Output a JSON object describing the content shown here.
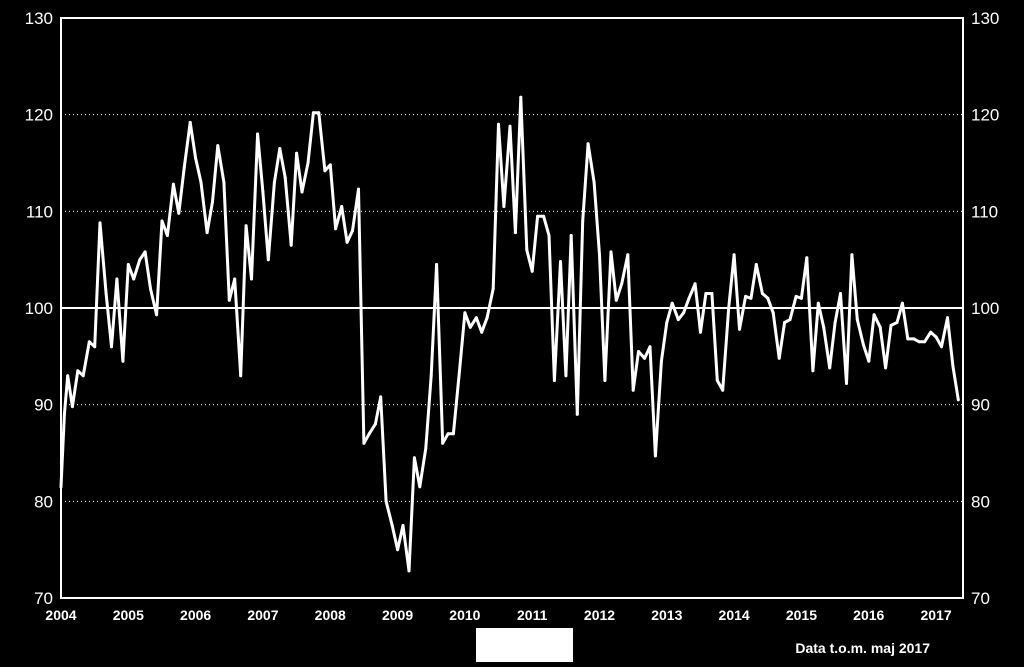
{
  "chart_data": {
    "type": "line",
    "title": "",
    "xlabel": "",
    "ylabel": "",
    "ylim": [
      70,
      130
    ],
    "xlim": [
      2004.0,
      2017.4
    ],
    "y_ticks": [
      "70",
      "80",
      "90",
      "100",
      "110",
      "120",
      "130"
    ],
    "x_ticks": [
      "2004",
      "2005",
      "2006",
      "2007",
      "2008",
      "2009",
      "2010",
      "2011",
      "2012",
      "2013",
      "2014",
      "2015",
      "2016",
      "2017"
    ],
    "reference_line": 100,
    "grid": "dotted horizontal",
    "note": "Data t.o.m. maj 2017",
    "colors": {
      "background": "#000000",
      "line": "#ffffff",
      "axis": "#ffffff",
      "legend_box": "#ffffff"
    },
    "series": [
      {
        "values": [
          [
            2004.0,
            81.5
          ],
          [
            2004.05,
            89.0
          ],
          [
            2004.1,
            93.0
          ],
          [
            2004.17,
            89.8
          ],
          [
            2004.25,
            93.5
          ],
          [
            2004.33,
            93.0
          ],
          [
            2004.42,
            96.5
          ],
          [
            2004.5,
            96.0
          ],
          [
            2004.58,
            108.8
          ],
          [
            2004.67,
            101.5
          ],
          [
            2004.75,
            96.0
          ],
          [
            2004.83,
            103.0
          ],
          [
            2004.92,
            94.5
          ],
          [
            2005.0,
            104.5
          ],
          [
            2005.08,
            103.0
          ],
          [
            2005.17,
            105.0
          ],
          [
            2005.25,
            105.8
          ],
          [
            2005.33,
            102.0
          ],
          [
            2005.42,
            99.3
          ],
          [
            2005.5,
            109.0
          ],
          [
            2005.58,
            107.5
          ],
          [
            2005.67,
            112.8
          ],
          [
            2005.75,
            109.8
          ],
          [
            2005.83,
            114.5
          ],
          [
            2005.92,
            119.2
          ],
          [
            2006.0,
            115.5
          ],
          [
            2006.08,
            113.0
          ],
          [
            2006.17,
            107.8
          ],
          [
            2006.25,
            111.0
          ],
          [
            2006.33,
            116.8
          ],
          [
            2006.42,
            113.0
          ],
          [
            2006.5,
            100.8
          ],
          [
            2006.58,
            103.0
          ],
          [
            2006.67,
            93.0
          ],
          [
            2006.75,
            108.5
          ],
          [
            2006.83,
            103.0
          ],
          [
            2006.92,
            118.0
          ],
          [
            2007.0,
            112.0
          ],
          [
            2007.08,
            105.0
          ],
          [
            2007.17,
            113.0
          ],
          [
            2007.25,
            116.5
          ],
          [
            2007.33,
            113.5
          ],
          [
            2007.42,
            106.5
          ],
          [
            2007.5,
            116.0
          ],
          [
            2007.58,
            112.0
          ],
          [
            2007.67,
            115.0
          ],
          [
            2007.75,
            120.2
          ],
          [
            2007.83,
            120.2
          ],
          [
            2007.92,
            114.2
          ],
          [
            2008.0,
            114.8
          ],
          [
            2008.08,
            108.2
          ],
          [
            2008.17,
            110.5
          ],
          [
            2008.25,
            106.8
          ],
          [
            2008.33,
            108.0
          ],
          [
            2008.42,
            112.3
          ],
          [
            2008.5,
            86.0
          ],
          [
            2008.58,
            87.0
          ],
          [
            2008.67,
            88.0
          ],
          [
            2008.75,
            90.8
          ],
          [
            2008.83,
            80.0
          ],
          [
            2008.92,
            77.5
          ],
          [
            2009.0,
            75.0
          ],
          [
            2009.08,
            77.5
          ],
          [
            2009.17,
            72.8
          ],
          [
            2009.25,
            84.5
          ],
          [
            2009.33,
            81.5
          ],
          [
            2009.42,
            85.5
          ],
          [
            2009.5,
            93.0
          ],
          [
            2009.58,
            104.5
          ],
          [
            2009.67,
            86.0
          ],
          [
            2009.75,
            87.0
          ],
          [
            2009.83,
            87.0
          ],
          [
            2009.92,
            93.5
          ],
          [
            2010.0,
            99.5
          ],
          [
            2010.08,
            98.0
          ],
          [
            2010.17,
            99.0
          ],
          [
            2010.25,
            97.5
          ],
          [
            2010.33,
            99.0
          ],
          [
            2010.42,
            102.0
          ],
          [
            2010.5,
            119.0
          ],
          [
            2010.58,
            110.5
          ],
          [
            2010.67,
            118.8
          ],
          [
            2010.75,
            107.8
          ],
          [
            2010.83,
            121.8
          ],
          [
            2010.92,
            106.0
          ],
          [
            2011.0,
            103.8
          ],
          [
            2011.08,
            109.5
          ],
          [
            2011.17,
            109.5
          ],
          [
            2011.25,
            107.5
          ],
          [
            2011.33,
            92.5
          ],
          [
            2011.42,
            104.8
          ],
          [
            2011.5,
            93.0
          ],
          [
            2011.58,
            107.5
          ],
          [
            2011.67,
            89.0
          ],
          [
            2011.75,
            109.0
          ],
          [
            2011.83,
            117.0
          ],
          [
            2011.92,
            113.0
          ],
          [
            2012.0,
            105.5
          ],
          [
            2012.08,
            92.5
          ],
          [
            2012.17,
            105.8
          ],
          [
            2012.25,
            100.8
          ],
          [
            2012.33,
            102.5
          ],
          [
            2012.42,
            105.5
          ],
          [
            2012.5,
            91.5
          ],
          [
            2012.58,
            95.5
          ],
          [
            2012.67,
            94.8
          ],
          [
            2012.75,
            96.0
          ],
          [
            2012.83,
            84.7
          ],
          [
            2012.92,
            94.5
          ],
          [
            2013.0,
            98.5
          ],
          [
            2013.08,
            100.5
          ],
          [
            2013.17,
            98.8
          ],
          [
            2013.25,
            99.5
          ],
          [
            2013.33,
            101.0
          ],
          [
            2013.42,
            102.5
          ],
          [
            2013.5,
            97.5
          ],
          [
            2013.58,
            101.5
          ],
          [
            2013.67,
            101.5
          ],
          [
            2013.75,
            92.5
          ],
          [
            2013.83,
            91.5
          ],
          [
            2013.92,
            100.0
          ],
          [
            2014.0,
            105.5
          ],
          [
            2014.08,
            97.8
          ],
          [
            2014.17,
            101.2
          ],
          [
            2014.25,
            101.0
          ],
          [
            2014.33,
            104.5
          ],
          [
            2014.42,
            101.5
          ],
          [
            2014.5,
            101.0
          ],
          [
            2014.58,
            99.5
          ],
          [
            2014.67,
            94.8
          ],
          [
            2014.75,
            98.5
          ],
          [
            2014.83,
            98.8
          ],
          [
            2014.92,
            101.2
          ],
          [
            2015.0,
            101.0
          ],
          [
            2015.08,
            105.2
          ],
          [
            2015.17,
            93.5
          ],
          [
            2015.25,
            100.5
          ],
          [
            2015.33,
            98.0
          ],
          [
            2015.42,
            93.8
          ],
          [
            2015.5,
            98.5
          ],
          [
            2015.58,
            101.5
          ],
          [
            2015.67,
            92.2
          ],
          [
            2015.75,
            105.5
          ],
          [
            2015.83,
            98.8
          ],
          [
            2015.92,
            96.2
          ],
          [
            2016.0,
            94.5
          ],
          [
            2016.08,
            99.3
          ],
          [
            2016.17,
            98.0
          ],
          [
            2016.25,
            93.8
          ],
          [
            2016.33,
            98.2
          ],
          [
            2016.42,
            98.5
          ],
          [
            2016.5,
            100.5
          ],
          [
            2016.58,
            96.8
          ],
          [
            2016.67,
            96.8
          ],
          [
            2016.75,
            96.5
          ],
          [
            2016.83,
            96.5
          ],
          [
            2016.92,
            97.5
          ],
          [
            2017.0,
            97.0
          ],
          [
            2017.08,
            96.0
          ],
          [
            2017.17,
            99.0
          ],
          [
            2017.25,
            94.0
          ],
          [
            2017.33,
            90.5
          ]
        ]
      }
    ]
  }
}
